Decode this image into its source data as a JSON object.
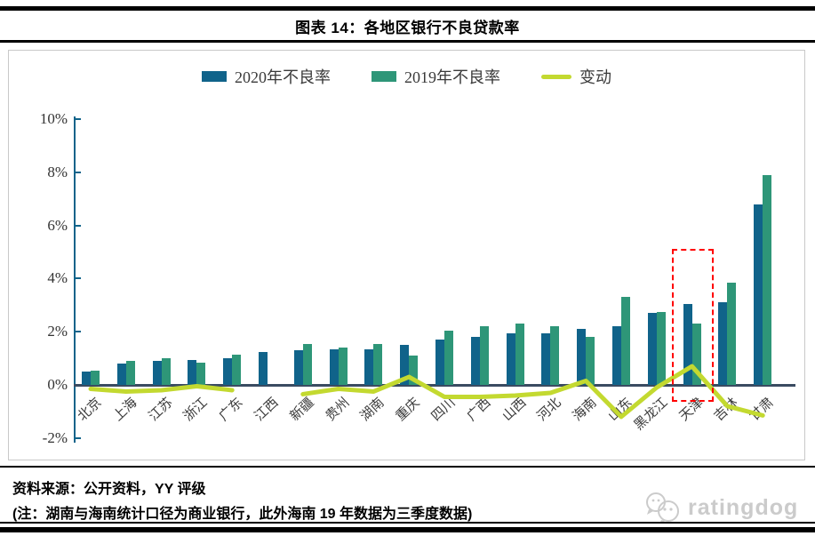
{
  "title": "图表 14：各地区银行不良贷款率",
  "legend": [
    {
      "label": "2020年不良率",
      "type": "swatch",
      "color": "#10638a"
    },
    {
      "label": "2019年不良率",
      "type": "swatch",
      "color": "#2e9678"
    },
    {
      "label": "变动",
      "type": "line",
      "color": "#c3d930"
    }
  ],
  "chart_data": {
    "type": "bar",
    "title": "图表 14：各地区银行不良贷款率",
    "categories": [
      "北京",
      "上海",
      "江苏",
      "浙江",
      "广东",
      "江西",
      "新疆",
      "贵州",
      "湖南",
      "重庆",
      "四川",
      "广西",
      "山西",
      "河北",
      "海南",
      "山东",
      "黑龙江",
      "天津",
      "吉林",
      "甘肃"
    ],
    "series": [
      {
        "name": "2020年不良率",
        "type": "bar",
        "color": "#10638a",
        "values": [
          0.5,
          0.8,
          0.9,
          0.95,
          1.0,
          1.25,
          1.3,
          1.35,
          1.35,
          1.5,
          1.7,
          1.8,
          1.95,
          1.95,
          2.1,
          2.2,
          2.7,
          3.05,
          3.1,
          6.8
        ]
      },
      {
        "name": "2019年不良率",
        "type": "bar",
        "color": "#2e9678",
        "values": [
          0.55,
          0.9,
          1.0,
          0.85,
          1.15,
          null,
          1.55,
          1.4,
          1.55,
          1.1,
          2.05,
          2.2,
          2.3,
          2.2,
          1.8,
          3.3,
          2.75,
          2.3,
          3.85,
          7.9
        ]
      },
      {
        "name": "变动",
        "type": "line",
        "color": "#c3d930",
        "values": [
          -0.15,
          -0.25,
          -0.2,
          -0.05,
          -0.2,
          null,
          -0.35,
          -0.15,
          -0.25,
          0.3,
          -0.45,
          -0.45,
          -0.4,
          -0.3,
          0.15,
          -1.2,
          -0.1,
          0.7,
          -0.8,
          -1.15
        ]
      }
    ],
    "xlabel": "",
    "ylabel": "",
    "y_ticks": [
      "10%",
      "8%",
      "6%",
      "4%",
      "2%",
      "0%",
      "-2%"
    ],
    "y_tick_values": [
      10,
      8,
      6,
      4,
      2,
      0,
      -2
    ],
    "ylim": [
      -2,
      10
    ],
    "grid": false,
    "legend_position": "top",
    "annotation": {
      "type": "dashed-box",
      "category": "天津",
      "category_index": 17,
      "color": "#ff0000"
    }
  },
  "footer": {
    "source": "资料来源：公开资料，YY 评级",
    "note": "(注：湖南与海南统计口径为商业银行，此外海南 19 年数据为三季度数据)",
    "watermark": "ratingdog"
  },
  "colors": {
    "bar_2020": "#10638a",
    "bar_2019": "#2e9678",
    "change_line": "#c3d930",
    "axis": "#10638a",
    "zero_line": "#3a4b61",
    "highlight": "#ff0000",
    "frame": "#c9c9c9"
  }
}
